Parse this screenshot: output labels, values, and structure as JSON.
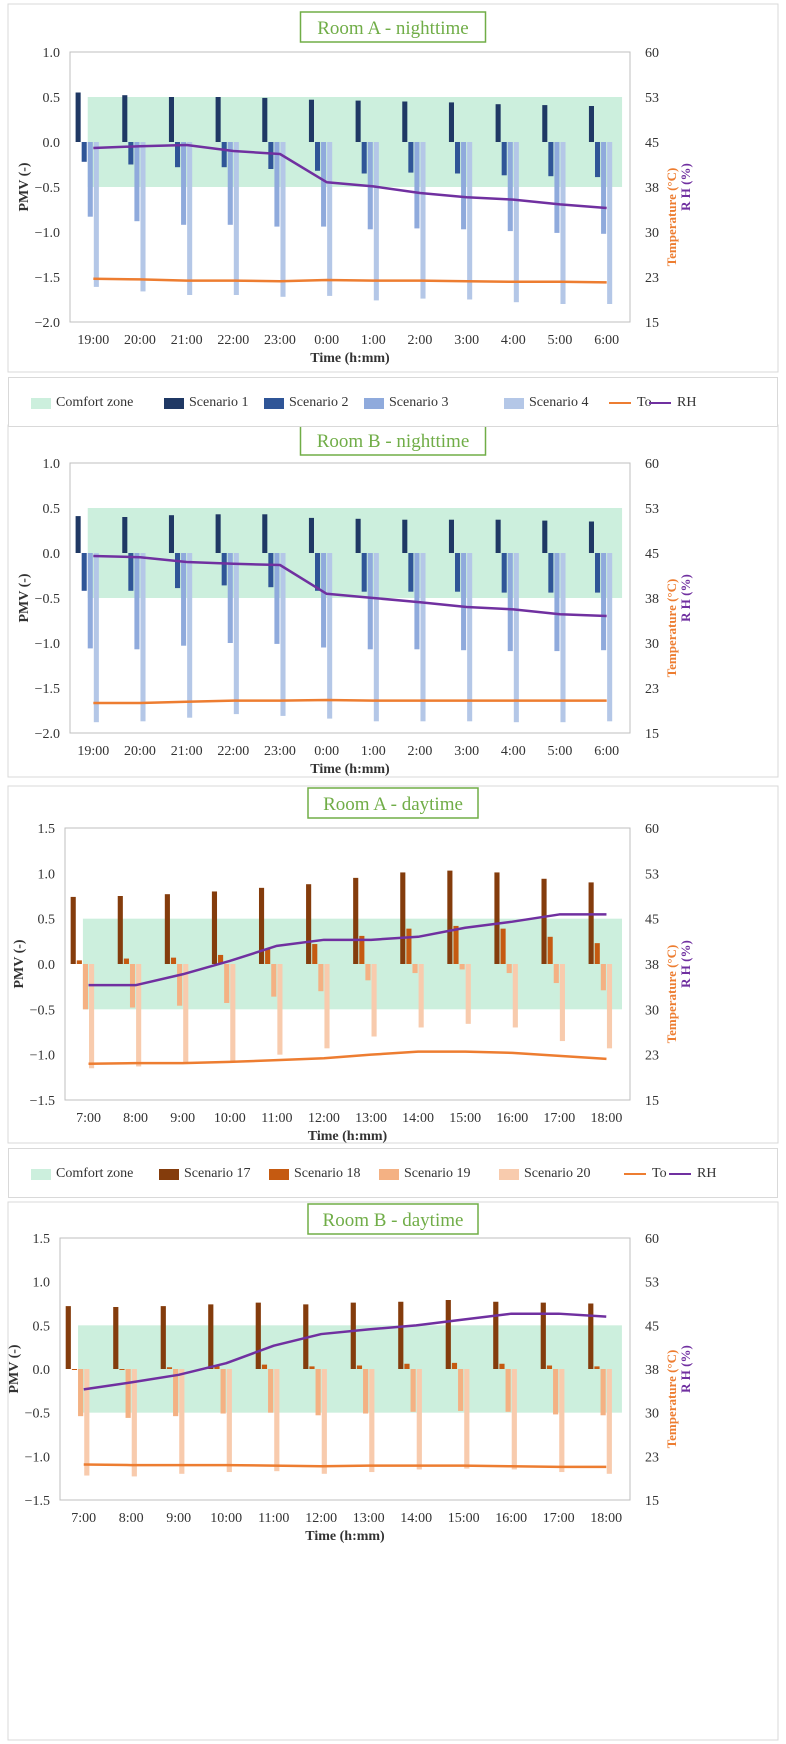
{
  "colors": {
    "comfort": "#ccefdd",
    "night": [
      "#1f3864",
      "#2f5597",
      "#8faadc",
      "#b4c7e7"
    ],
    "day": [
      "#843c0c",
      "#c55a11",
      "#f4b183",
      "#f8cbad"
    ],
    "to": "#ed7d31",
    "rh": "#7030a0",
    "title": "#70ad47"
  },
  "legends": [
    {
      "items": [
        {
          "label": "Comfort zone",
          "kind": "patch",
          "color": "#ccefdd"
        },
        {
          "label": "Scenario 1",
          "kind": "patch",
          "color": "#1f3864"
        },
        {
          "label": "Scenario 2",
          "kind": "patch",
          "color": "#2f5597"
        },
        {
          "label": "Scenario 3",
          "kind": "patch",
          "color": "#8faadc"
        },
        {
          "label": "Scenario 4",
          "kind": "patch",
          "color": "#b4c7e7"
        },
        {
          "label": "To",
          "kind": "line",
          "color": "#ed7d31"
        },
        {
          "label": "RH",
          "kind": "line",
          "color": "#7030a0"
        }
      ]
    },
    {
      "items": [
        {
          "label": "Comfort zone",
          "kind": "patch",
          "color": "#ccefdd"
        },
        {
          "label": "Scenario 17",
          "kind": "patch",
          "color": "#843c0c"
        },
        {
          "label": "Scenario 18",
          "kind": "patch",
          "color": "#c55a11"
        },
        {
          "label": "Scenario 19",
          "kind": "patch",
          "color": "#f4b183"
        },
        {
          "label": "Scenario 20",
          "kind": "patch",
          "color": "#f8cbad"
        },
        {
          "label": "To",
          "kind": "line",
          "color": "#ed7d31"
        },
        {
          "label": "RH",
          "kind": "line",
          "color": "#7030a0"
        }
      ]
    }
  ],
  "chart_data": [
    {
      "type": "bar",
      "title": "Room A - nighttime",
      "xlabel": "Time (h:mm)",
      "ylabel": "PMV (-)",
      "y2label_temp": "Temperature (°C)",
      "y2label_rh": "R H (%)",
      "ylim": [
        -2.0,
        1.0
      ],
      "yticks": [
        "1.0",
        "0.5",
        "0.0",
        "−0.5",
        "−1.0",
        "−1.5",
        "−2.0"
      ],
      "y2lim": [
        15,
        60
      ],
      "y2ticks": [
        "60",
        "53",
        "45",
        "38",
        "30",
        "23",
        "15"
      ],
      "comfort_zone": [
        -0.5,
        0.5
      ],
      "categories": [
        "19:00",
        "20:00",
        "21:00",
        "22:00",
        "23:00",
        "0:00",
        "1:00",
        "2:00",
        "3:00",
        "4:00",
        "5:00",
        "6:00"
      ],
      "series": [
        {
          "name": "Scenario 1",
          "values": [
            0.55,
            0.52,
            0.5,
            0.5,
            0.49,
            0.47,
            0.46,
            0.45,
            0.44,
            0.42,
            0.41,
            0.4
          ]
        },
        {
          "name": "Scenario 2",
          "values": [
            -0.22,
            -0.25,
            -0.28,
            -0.28,
            -0.3,
            -0.32,
            -0.35,
            -0.34,
            -0.35,
            -0.37,
            -0.38,
            -0.39
          ]
        },
        {
          "name": "Scenario 3",
          "values": [
            -0.83,
            -0.88,
            -0.92,
            -0.92,
            -0.94,
            -0.94,
            -0.97,
            -0.96,
            -0.97,
            -0.99,
            -1.01,
            -1.02
          ]
        },
        {
          "name": "Scenario 4",
          "values": [
            -1.61,
            -1.66,
            -1.7,
            -1.7,
            -1.72,
            -1.71,
            -1.76,
            -1.74,
            -1.75,
            -1.78,
            -1.8,
            -1.8
          ]
        }
      ],
      "to": [
        22.2,
        22.1,
        21.9,
        21.9,
        21.8,
        22.0,
        21.9,
        21.9,
        21.8,
        21.7,
        21.7,
        21.6
      ],
      "rh": [
        44.0,
        44.3,
        44.5,
        43.5,
        43.0,
        38.3,
        37.6,
        36.5,
        35.8,
        35.4,
        34.6,
        34.0
      ]
    },
    {
      "type": "bar",
      "title": "Room B - nighttime",
      "xlabel": "Time (h:mm)",
      "ylabel": "PMV (-)",
      "y2label_temp": "Temperature (°C)",
      "y2label_rh": "R H (%)",
      "ylim": [
        -2.0,
        1.0
      ],
      "yticks": [
        "1.0",
        "0.5",
        "0.0",
        "−0.5",
        "−1.0",
        "−1.5",
        "−2.0"
      ],
      "y2lim": [
        15,
        60
      ],
      "y2ticks": [
        "60",
        "53",
        "45",
        "38",
        "30",
        "23",
        "15"
      ],
      "comfort_zone": [
        -0.5,
        0.5
      ],
      "categories": [
        "19:00",
        "20:00",
        "21:00",
        "22:00",
        "23:00",
        "0:00",
        "1:00",
        "2:00",
        "3:00",
        "4:00",
        "5:00",
        "6:00"
      ],
      "series": [
        {
          "name": "Scenario 1",
          "values": [
            0.41,
            0.4,
            0.42,
            0.43,
            0.43,
            0.39,
            0.38,
            0.37,
            0.37,
            0.37,
            0.36,
            0.35
          ]
        },
        {
          "name": "Scenario 2",
          "values": [
            -0.42,
            -0.42,
            -0.39,
            -0.36,
            -0.38,
            -0.42,
            -0.43,
            -0.43,
            -0.43,
            -0.44,
            -0.44,
            -0.44
          ]
        },
        {
          "name": "Scenario 3",
          "values": [
            -1.06,
            -1.07,
            -1.03,
            -1.0,
            -1.01,
            -1.05,
            -1.07,
            -1.07,
            -1.08,
            -1.09,
            -1.09,
            -1.08
          ]
        },
        {
          "name": "Scenario 4",
          "values": [
            -1.88,
            -1.87,
            -1.83,
            -1.79,
            -1.81,
            -1.84,
            -1.87,
            -1.87,
            -1.87,
            -1.88,
            -1.88,
            -1.87
          ]
        }
      ],
      "to": [
        20.0,
        20.0,
        20.2,
        20.4,
        20.4,
        20.5,
        20.4,
        20.4,
        20.4,
        20.4,
        20.4,
        20.4
      ],
      "rh": [
        44.5,
        44.3,
        43.5,
        43.2,
        43.0,
        38.2,
        37.5,
        36.8,
        36.0,
        35.6,
        34.8,
        34.5
      ]
    },
    {
      "type": "bar",
      "title": "Room A - daytime",
      "xlabel": "Time (h:mm)",
      "ylabel": "PMV (-)",
      "y2label_temp": "Temperature (°C)",
      "y2label_rh": "R H (%)",
      "ylim": [
        -1.5,
        1.5
      ],
      "yticks": [
        "1.5",
        "1.0",
        "0.5",
        "0.0",
        "−0.5",
        "−1.0",
        "−1.5"
      ],
      "y2lim": [
        15,
        60
      ],
      "y2ticks": [
        "60",
        "53",
        "45",
        "38",
        "30",
        "23",
        "15"
      ],
      "comfort_zone": [
        -0.5,
        0.5
      ],
      "categories": [
        "7:00",
        "8:00",
        "9:00",
        "10:00",
        "11:00",
        "12:00",
        "13:00",
        "14:00",
        "15:00",
        "16:00",
        "17:00",
        "18:00"
      ],
      "series": [
        {
          "name": "Scenario 17",
          "values": [
            0.74,
            0.75,
            0.77,
            0.8,
            0.84,
            0.88,
            0.95,
            1.01,
            1.03,
            1.01,
            0.94,
            0.9
          ]
        },
        {
          "name": "Scenario 18",
          "values": [
            0.04,
            0.06,
            0.07,
            0.1,
            0.17,
            0.22,
            0.31,
            0.39,
            0.42,
            0.39,
            0.3,
            0.23
          ]
        },
        {
          "name": "Scenario 19",
          "values": [
            -0.5,
            -0.48,
            -0.46,
            -0.43,
            -0.36,
            -0.3,
            -0.18,
            -0.1,
            -0.06,
            -0.1,
            -0.21,
            -0.29
          ]
        },
        {
          "name": "Scenario 20",
          "values": [
            -1.15,
            -1.13,
            -1.1,
            -1.07,
            -1.0,
            -0.93,
            -0.8,
            -0.7,
            -0.66,
            -0.7,
            -0.85,
            -0.93
          ]
        }
      ],
      "to": [
        21.0,
        21.1,
        21.1,
        21.3,
        21.6,
        21.9,
        22.5,
        23.0,
        23.0,
        22.8,
        22.3,
        21.8
      ],
      "rh": [
        34.0,
        34.0,
        35.8,
        38.0,
        40.5,
        41.5,
        41.5,
        42.0,
        43.5,
        44.5,
        45.7,
        45.7
      ]
    },
    {
      "type": "bar",
      "title": "Room B - daytime",
      "xlabel": "Time (h:mm)",
      "ylabel": "PMV (-)",
      "y2label_temp": "Temperature (°C)",
      "y2label_rh": "R H (%)",
      "ylim": [
        -1.5,
        1.5
      ],
      "yticks": [
        "1.5",
        "1.0",
        "0.5",
        "0.0",
        "−0.5",
        "−1.0",
        "−1.5"
      ],
      "y2lim": [
        15,
        60
      ],
      "y2ticks": [
        "60",
        "53",
        "45",
        "38",
        "30",
        "23",
        "15"
      ],
      "comfort_zone": [
        -0.5,
        0.5
      ],
      "categories": [
        "7:00",
        "8:00",
        "9:00",
        "10:00",
        "11:00",
        "12:00",
        "13:00",
        "14:00",
        "15:00",
        "16:00",
        "17:00",
        "18:00"
      ],
      "series": [
        {
          "name": "Scenario 17",
          "values": [
            0.72,
            0.71,
            0.72,
            0.74,
            0.76,
            0.74,
            0.76,
            0.77,
            0.79,
            0.77,
            0.76,
            0.75
          ]
        },
        {
          "name": "Scenario 18",
          "values": [
            0.0,
            0.0,
            0.02,
            0.04,
            0.05,
            0.03,
            0.04,
            0.06,
            0.07,
            0.06,
            0.04,
            0.03
          ]
        },
        {
          "name": "Scenario 19",
          "values": [
            -0.54,
            -0.56,
            -0.54,
            -0.51,
            -0.5,
            -0.53,
            -0.51,
            -0.49,
            -0.48,
            -0.49,
            -0.52,
            -0.53
          ]
        },
        {
          "name": "Scenario 20",
          "values": [
            -1.22,
            -1.23,
            -1.2,
            -1.18,
            -1.17,
            -1.2,
            -1.18,
            -1.15,
            -1.14,
            -1.15,
            -1.18,
            -1.2
          ]
        }
      ],
      "to": [
        21.1,
        21.0,
        21.0,
        21.0,
        20.9,
        20.8,
        20.9,
        20.9,
        20.9,
        20.8,
        20.7,
        20.7
      ],
      "rh": [
        34.0,
        35.2,
        36.5,
        38.5,
        41.5,
        43.5,
        44.3,
        45.0,
        46.0,
        47.0,
        47.0,
        46.5
      ]
    }
  ]
}
